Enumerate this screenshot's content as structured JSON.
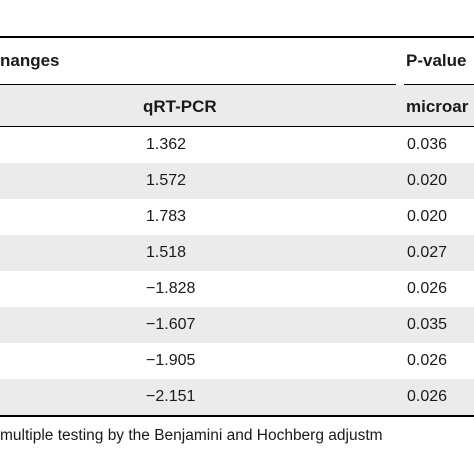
{
  "headers": {
    "group1_label": "nanges",
    "group2_label": "P-value",
    "col_qrtpcr": "qRT-PCR",
    "col_microarray": "microar"
  },
  "rows": [
    {
      "qrtpcr": "1.362",
      "pvalue": "0.036"
    },
    {
      "qrtpcr": "1.572",
      "pvalue": "0.020"
    },
    {
      "qrtpcr": "1.783",
      "pvalue": "0.020"
    },
    {
      "qrtpcr": "1.518",
      "pvalue": "0.027"
    },
    {
      "qrtpcr": "−1.828",
      "pvalue": "0.026"
    },
    {
      "qrtpcr": "−1.607",
      "pvalue": "0.035"
    },
    {
      "qrtpcr": "−1.905",
      "pvalue": "0.026"
    },
    {
      "qrtpcr": "−2.151",
      "pvalue": "0.026"
    }
  ],
  "footnote": "multiple testing by the Benjamini and Hochberg adjustm",
  "colors": {
    "shade": "#ebebeb",
    "rule": "#000000",
    "text": "#1a1a1a"
  }
}
